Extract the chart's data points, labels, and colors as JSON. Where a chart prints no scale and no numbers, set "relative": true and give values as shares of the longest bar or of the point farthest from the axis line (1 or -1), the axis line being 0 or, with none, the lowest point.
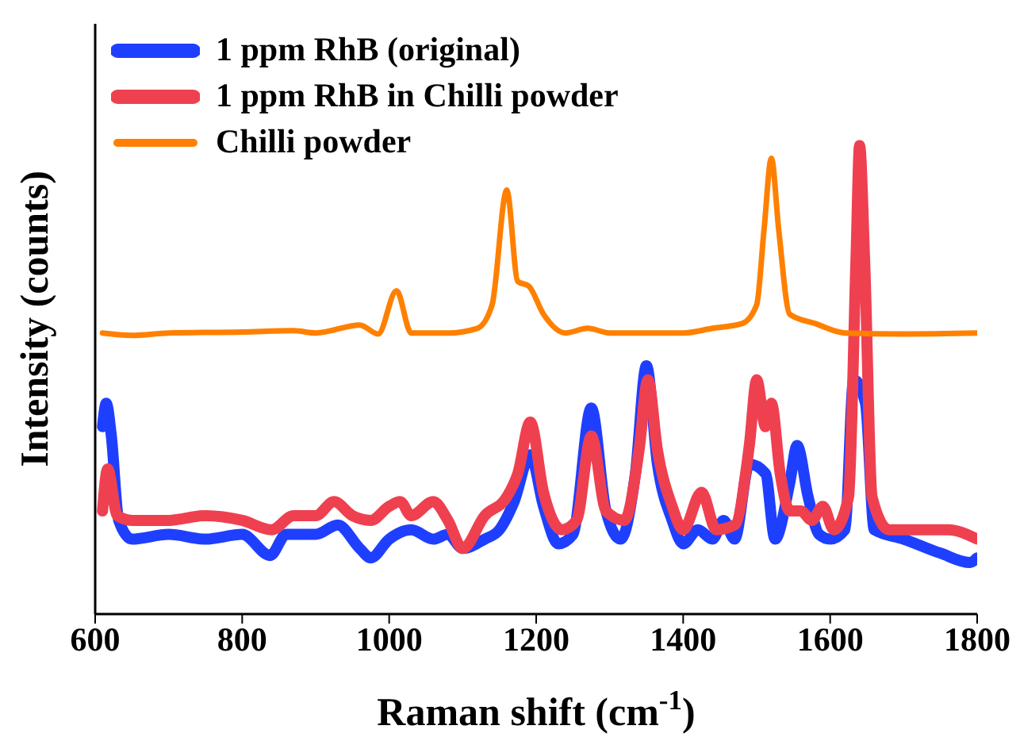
{
  "chart_data": {
    "type": "line",
    "relative": true,
    "xlabel": "Raman shift (cm$^{-1}$)",
    "ylabel": "Intensity (counts)",
    "xlim": [
      600,
      1800
    ],
    "xticks": [
      600,
      800,
      1000,
      1200,
      1400,
      1600,
      1800
    ],
    "grid": false,
    "legend": "top left",
    "marker": "none",
    "line_style": "solid",
    "series": [
      {
        "name": "1 ppm RhB (original)",
        "color": "#1f3fff",
        "x": [
          610,
          615,
          622,
          632,
          650,
          700,
          750,
          800,
          838,
          860,
          900,
          930,
          960,
          975,
          1000,
          1030,
          1060,
          1080,
          1100,
          1130,
          1150,
          1170,
          1192,
          1210,
          1230,
          1250,
          1275,
          1295,
          1315,
          1335,
          1350,
          1365,
          1385,
          1400,
          1420,
          1440,
          1455,
          1470,
          1490,
          1500,
          1512,
          1525,
          1545,
          1555,
          1570,
          1585,
          1600,
          1620,
          1632,
          1640,
          1648,
          1660,
          1700,
          1750,
          1790,
          1800
        ],
        "values": [
          0.4,
          0.45,
          0.38,
          0.2,
          0.16,
          0.17,
          0.16,
          0.17,
          0.125,
          0.17,
          0.17,
          0.19,
          0.14,
          0.12,
          0.16,
          0.18,
          0.16,
          0.17,
          0.14,
          0.16,
          0.18,
          0.24,
          0.34,
          0.23,
          0.15,
          0.17,
          0.44,
          0.22,
          0.16,
          0.3,
          0.53,
          0.32,
          0.2,
          0.15,
          0.18,
          0.16,
          0.2,
          0.16,
          0.32,
          null,
          0.3,
          0.16,
          0.28,
          0.36,
          0.25,
          0.17,
          0.16,
          0.18,
          0.5,
          null,
          0.45,
          0.18,
          0.16,
          0.13,
          0.11,
          0.12
        ]
      },
      {
        "name": "1 ppm RhB in Chilli powder",
        "color": "#ef4050",
        "x": [
          610,
          617,
          630,
          650,
          700,
          750,
          800,
          840,
          870,
          900,
          925,
          950,
          975,
          1000,
          1015,
          1030,
          1060,
          1080,
          1100,
          1130,
          1160,
          1175,
          1192,
          1210,
          1235,
          1255,
          1275,
          1295,
          1320,
          1340,
          1352,
          1365,
          1385,
          1400,
          1425,
          1445,
          1470,
          1490,
          1500,
          1512,
          1520,
          1532,
          1545,
          1560,
          1575,
          1590,
          1605,
          1625,
          1635,
          1640,
          1647,
          1657,
          1680,
          1720,
          1760,
          1800
        ],
        "values": [
          0.22,
          0.31,
          0.21,
          0.2,
          0.2,
          0.21,
          0.2,
          0.18,
          0.21,
          0.21,
          0.24,
          0.21,
          0.2,
          0.23,
          0.24,
          0.21,
          0.24,
          0.2,
          0.14,
          0.21,
          0.25,
          0.3,
          0.41,
          0.26,
          0.18,
          0.2,
          0.38,
          0.22,
          0.2,
          0.35,
          0.5,
          0.35,
          0.23,
          0.18,
          0.26,
          0.18,
          0.19,
          0.36,
          0.5,
          0.4,
          0.45,
          0.3,
          0.22,
          0.22,
          0.2,
          0.23,
          0.18,
          0.25,
          0.75,
          1.0,
          0.75,
          0.25,
          0.18,
          0.18,
          0.18,
          0.16
        ]
      },
      {
        "name": "Chilli powder",
        "color": "#ff8000",
        "x": [
          610,
          650,
          700,
          800,
          870,
          900,
          960,
          985,
          1010,
          1030,
          1080,
          1120,
          1140,
          1160,
          1175,
          1190,
          1210,
          1240,
          1270,
          1300,
          1400,
          1440,
          1480,
          1500,
          1510,
          1520,
          1530,
          1545,
          1580,
          1620,
          1700,
          1800
        ],
        "values": [
          0.6,
          0.595,
          0.6,
          0.602,
          0.605,
          0.6,
          0.617,
          0.598,
          0.69,
          0.6,
          0.6,
          0.61,
          0.66,
          0.905,
          0.71,
          0.7,
          0.64,
          0.6,
          0.61,
          0.6,
          0.6,
          0.61,
          0.62,
          0.66,
          0.82,
          0.973,
          0.82,
          0.64,
          0.62,
          0.6,
          0.598,
          0.6
        ]
      }
    ]
  }
}
